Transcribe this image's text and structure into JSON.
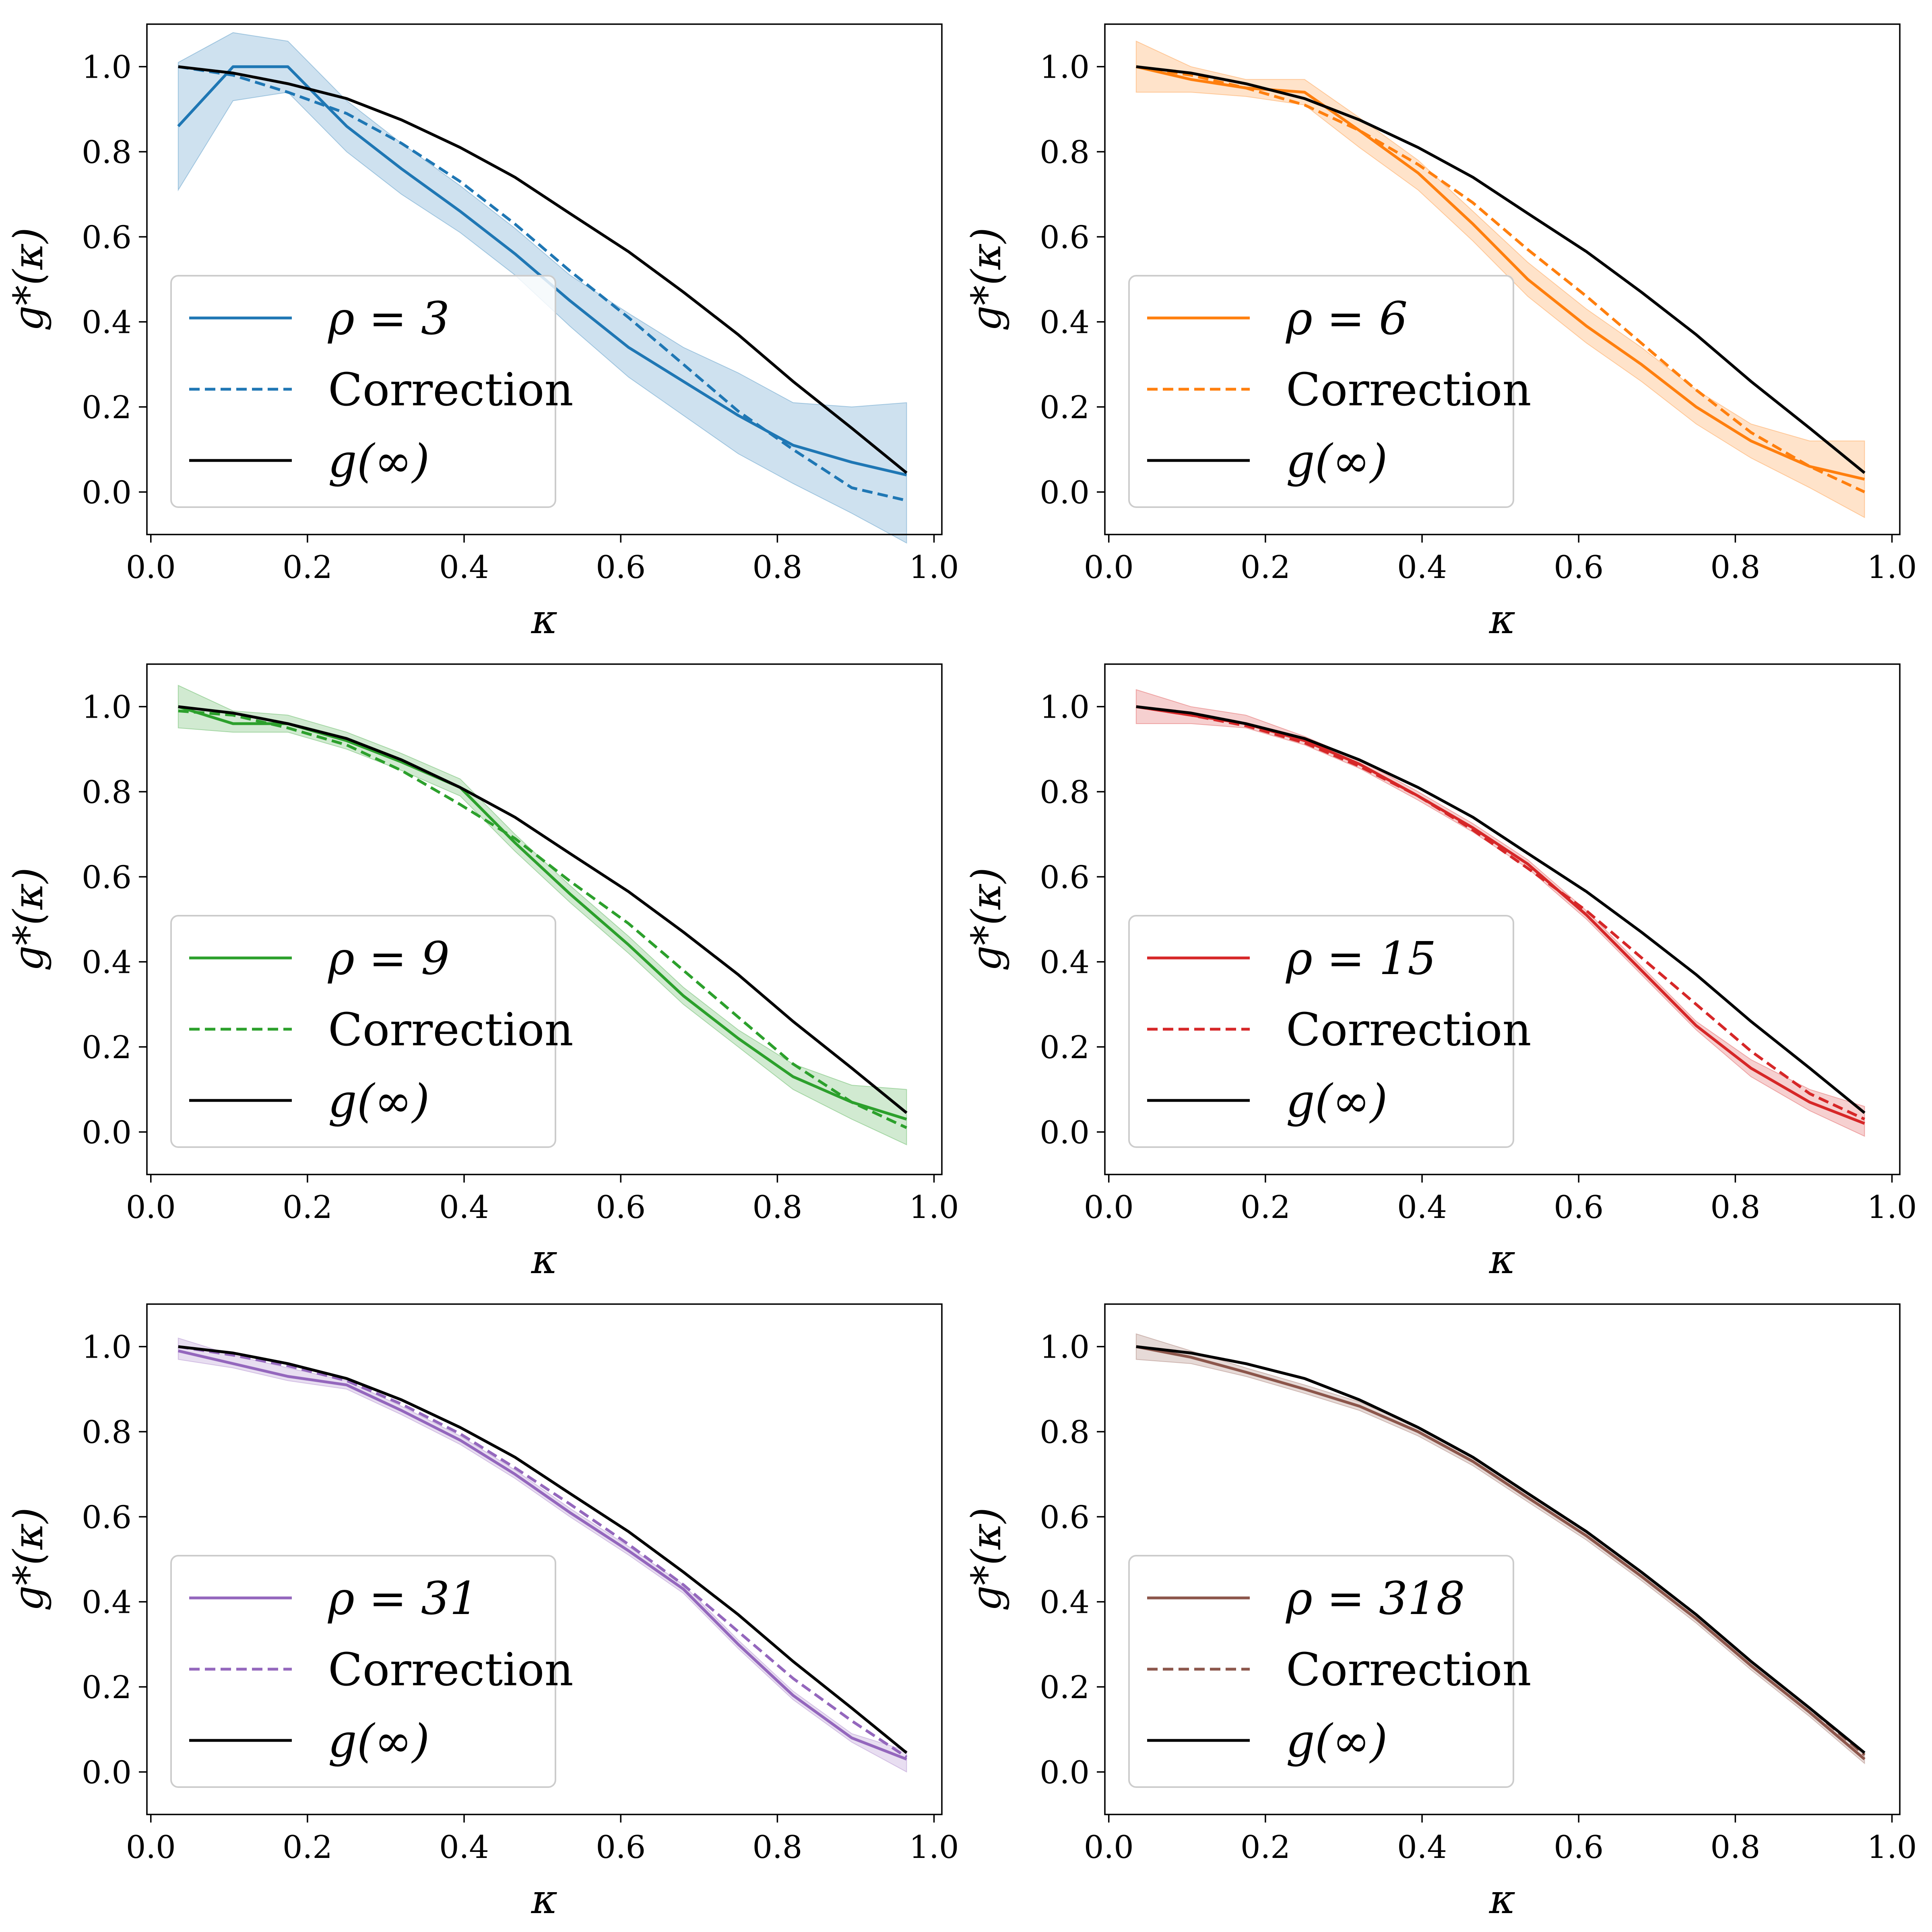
{
  "chart_data": [
    {
      "type": "line",
      "title": "",
      "xlabel": "κ",
      "ylabel": "g*(κ)",
      "xlim": [
        -0.005,
        1.01
      ],
      "ylim": [
        -0.1,
        1.1
      ],
      "xticks": [
        "0.0",
        "0.2",
        "0.4",
        "0.6",
        "0.8",
        "1.0"
      ],
      "yticks": [
        "0.0",
        "0.2",
        "0.4",
        "0.6",
        "0.8",
        "1.0"
      ],
      "legend_position": "center-left",
      "color": "#1f77b4",
      "x": [
        0.035,
        0.105,
        0.175,
        0.25,
        0.32,
        0.395,
        0.465,
        0.535,
        0.61,
        0.68,
        0.75,
        0.82,
        0.895,
        0.965
      ],
      "series": [
        {
          "name": "ρ = 3",
          "style": "solid",
          "values": [
            0.86,
            1.0,
            1.0,
            0.86,
            0.76,
            0.66,
            0.56,
            0.45,
            0.34,
            0.26,
            0.18,
            0.11,
            0.07,
            0.04
          ]
        },
        {
          "name": "Correction",
          "style": "dashed",
          "values": [
            1.0,
            0.98,
            0.94,
            0.89,
            0.82,
            0.73,
            0.63,
            0.52,
            0.41,
            0.3,
            0.19,
            0.1,
            0.01,
            -0.02
          ]
        },
        {
          "name": "g(∞)",
          "style": "solid",
          "values": [
            1.0,
            0.985,
            0.96,
            0.925,
            0.875,
            0.81,
            0.74,
            0.655,
            0.565,
            0.47,
            0.37,
            0.26,
            0.15,
            0.045
          ]
        }
      ],
      "band": {
        "lower": [
          0.71,
          0.92,
          0.94,
          0.8,
          0.7,
          0.61,
          0.51,
          0.39,
          0.27,
          0.18,
          0.09,
          0.02,
          -0.05,
          -0.12
        ],
        "upper": [
          1.01,
          1.08,
          1.06,
          0.92,
          0.82,
          0.72,
          0.62,
          0.51,
          0.42,
          0.34,
          0.28,
          0.21,
          0.2,
          0.21
        ]
      },
      "legend": [
        "ρ = 3",
        "Correction",
        "g(∞)"
      ]
    },
    {
      "type": "line",
      "title": "",
      "xlabel": "κ",
      "ylabel": "g*(κ)",
      "xlim": [
        -0.005,
        1.01
      ],
      "ylim": [
        -0.1,
        1.1
      ],
      "xticks": [
        "0.0",
        "0.2",
        "0.4",
        "0.6",
        "0.8",
        "1.0"
      ],
      "yticks": [
        "0.0",
        "0.2",
        "0.4",
        "0.6",
        "0.8",
        "1.0"
      ],
      "legend_position": "center-left",
      "color": "#ff7f0e",
      "x": [
        0.035,
        0.105,
        0.175,
        0.25,
        0.32,
        0.395,
        0.465,
        0.535,
        0.61,
        0.68,
        0.75,
        0.82,
        0.895,
        0.965
      ],
      "series": [
        {
          "name": "ρ = 6",
          "style": "solid",
          "values": [
            1.0,
            0.97,
            0.95,
            0.94,
            0.85,
            0.75,
            0.63,
            0.5,
            0.39,
            0.3,
            0.2,
            0.12,
            0.06,
            0.03
          ]
        },
        {
          "name": "Correction",
          "style": "dashed",
          "values": [
            1.0,
            0.98,
            0.95,
            0.91,
            0.85,
            0.77,
            0.68,
            0.57,
            0.46,
            0.35,
            0.24,
            0.14,
            0.06,
            0.0
          ]
        },
        {
          "name": "g(∞)",
          "style": "solid",
          "values": [
            1.0,
            0.985,
            0.96,
            0.925,
            0.875,
            0.81,
            0.74,
            0.655,
            0.565,
            0.47,
            0.37,
            0.26,
            0.15,
            0.045
          ]
        }
      ],
      "band": {
        "lower": [
          0.94,
          0.94,
          0.93,
          0.91,
          0.81,
          0.71,
          0.59,
          0.46,
          0.35,
          0.26,
          0.16,
          0.08,
          0.01,
          -0.06
        ],
        "upper": [
          1.06,
          1.0,
          0.97,
          0.97,
          0.88,
          0.78,
          0.66,
          0.54,
          0.43,
          0.34,
          0.24,
          0.16,
          0.12,
          0.12
        ]
      },
      "legend": [
        "ρ = 6",
        "Correction",
        "g(∞)"
      ]
    },
    {
      "type": "line",
      "title": "",
      "xlabel": "κ",
      "ylabel": "g*(κ)",
      "xlim": [
        -0.005,
        1.01
      ],
      "ylim": [
        -0.1,
        1.1
      ],
      "xticks": [
        "0.0",
        "0.2",
        "0.4",
        "0.6",
        "0.8",
        "1.0"
      ],
      "yticks": [
        "0.0",
        "0.2",
        "0.4",
        "0.6",
        "0.8",
        "1.0"
      ],
      "legend_position": "center-left",
      "color": "#2ca02c",
      "x": [
        0.035,
        0.105,
        0.175,
        0.25,
        0.32,
        0.395,
        0.465,
        0.535,
        0.61,
        0.68,
        0.75,
        0.82,
        0.895,
        0.965
      ],
      "series": [
        {
          "name": "ρ = 9",
          "style": "solid",
          "values": [
            1.0,
            0.96,
            0.96,
            0.92,
            0.87,
            0.81,
            0.68,
            0.56,
            0.44,
            0.32,
            0.22,
            0.13,
            0.07,
            0.03
          ]
        },
        {
          "name": "Correction",
          "style": "dashed",
          "values": [
            0.99,
            0.98,
            0.95,
            0.91,
            0.85,
            0.77,
            0.69,
            0.59,
            0.49,
            0.38,
            0.27,
            0.16,
            0.07,
            0.01
          ]
        },
        {
          "name": "g(∞)",
          "style": "solid",
          "values": [
            1.0,
            0.985,
            0.96,
            0.925,
            0.875,
            0.81,
            0.74,
            0.655,
            0.565,
            0.47,
            0.37,
            0.26,
            0.15,
            0.045
          ]
        }
      ],
      "band": {
        "lower": [
          0.95,
          0.94,
          0.94,
          0.9,
          0.85,
          0.79,
          0.66,
          0.54,
          0.42,
          0.3,
          0.2,
          0.1,
          0.03,
          -0.03
        ],
        "upper": [
          1.05,
          0.99,
          0.98,
          0.94,
          0.89,
          0.83,
          0.7,
          0.58,
          0.46,
          0.34,
          0.24,
          0.16,
          0.11,
          0.1
        ]
      },
      "legend": [
        "ρ = 9",
        "Correction",
        "g(∞)"
      ]
    },
    {
      "type": "line",
      "title": "",
      "xlabel": "κ",
      "ylabel": "g*(κ)",
      "xlim": [
        -0.005,
        1.01
      ],
      "ylim": [
        -0.1,
        1.1
      ],
      "xticks": [
        "0.0",
        "0.2",
        "0.4",
        "0.6",
        "0.8",
        "1.0"
      ],
      "yticks": [
        "0.0",
        "0.2",
        "0.4",
        "0.6",
        "0.8",
        "1.0"
      ],
      "legend_position": "center-left",
      "color": "#d62728",
      "x": [
        0.035,
        0.105,
        0.175,
        0.25,
        0.32,
        0.395,
        0.465,
        0.535,
        0.61,
        0.68,
        0.75,
        0.82,
        0.895,
        0.965
      ],
      "series": [
        {
          "name": "ρ = 15",
          "style": "solid",
          "values": [
            1.0,
            0.98,
            0.96,
            0.92,
            0.865,
            0.79,
            0.715,
            0.63,
            0.51,
            0.38,
            0.25,
            0.15,
            0.07,
            0.02
          ]
        },
        {
          "name": "Correction",
          "style": "dashed",
          "values": [
            1.0,
            0.98,
            0.955,
            0.915,
            0.86,
            0.79,
            0.71,
            0.62,
            0.52,
            0.41,
            0.3,
            0.19,
            0.09,
            0.03
          ]
        },
        {
          "name": "g(∞)",
          "style": "solid",
          "values": [
            1.0,
            0.985,
            0.96,
            0.925,
            0.875,
            0.81,
            0.74,
            0.655,
            0.565,
            0.47,
            0.37,
            0.26,
            0.15,
            0.045
          ]
        }
      ],
      "band": {
        "lower": [
          0.96,
          0.96,
          0.95,
          0.91,
          0.855,
          0.78,
          0.705,
          0.62,
          0.5,
          0.37,
          0.24,
          0.13,
          0.05,
          -0.01
        ],
        "upper": [
          1.04,
          1.0,
          0.98,
          0.93,
          0.875,
          0.8,
          0.725,
          0.64,
          0.52,
          0.39,
          0.26,
          0.17,
          0.1,
          0.06
        ]
      },
      "legend": [
        "ρ = 15",
        "Correction",
        "g(∞)"
      ]
    },
    {
      "type": "line",
      "title": "",
      "xlabel": "κ",
      "ylabel": "g*(κ)",
      "xlim": [
        -0.005,
        1.01
      ],
      "ylim": [
        -0.1,
        1.1
      ],
      "xticks": [
        "0.0",
        "0.2",
        "0.4",
        "0.6",
        "0.8",
        "1.0"
      ],
      "yticks": [
        "0.0",
        "0.2",
        "0.4",
        "0.6",
        "0.8",
        "1.0"
      ],
      "legend_position": "center-left",
      "color": "#9467bd",
      "x": [
        0.035,
        0.105,
        0.175,
        0.25,
        0.32,
        0.395,
        0.465,
        0.535,
        0.61,
        0.68,
        0.75,
        0.82,
        0.895,
        0.965
      ],
      "series": [
        {
          "name": "ρ = 31",
          "style": "solid",
          "values": [
            0.99,
            0.96,
            0.93,
            0.91,
            0.85,
            0.78,
            0.7,
            0.61,
            0.52,
            0.43,
            0.3,
            0.18,
            0.08,
            0.03
          ]
        },
        {
          "name": "Correction",
          "style": "dashed",
          "values": [
            1.0,
            0.98,
            0.955,
            0.92,
            0.865,
            0.795,
            0.715,
            0.63,
            0.535,
            0.44,
            0.33,
            0.22,
            0.12,
            0.035
          ]
        },
        {
          "name": "g(∞)",
          "style": "solid",
          "values": [
            1.0,
            0.985,
            0.96,
            0.925,
            0.875,
            0.81,
            0.74,
            0.655,
            0.565,
            0.47,
            0.37,
            0.26,
            0.15,
            0.045
          ]
        }
      ],
      "band": {
        "lower": [
          0.97,
          0.95,
          0.92,
          0.9,
          0.84,
          0.77,
          0.69,
          0.6,
          0.51,
          0.42,
          0.29,
          0.17,
          0.07,
          0.0
        ],
        "upper": [
          1.02,
          0.98,
          0.95,
          0.92,
          0.86,
          0.79,
          0.71,
          0.62,
          0.53,
          0.44,
          0.31,
          0.19,
          0.09,
          0.05
        ]
      },
      "legend": [
        "ρ = 31",
        "Correction",
        "g(∞)"
      ]
    },
    {
      "type": "line",
      "title": "",
      "xlabel": "κ",
      "ylabel": "g*(κ)",
      "xlim": [
        -0.005,
        1.01
      ],
      "ylim": [
        -0.1,
        1.1
      ],
      "xticks": [
        "0.0",
        "0.2",
        "0.4",
        "0.6",
        "0.8",
        "1.0"
      ],
      "yticks": [
        "0.0",
        "0.2",
        "0.4",
        "0.6",
        "0.8",
        "1.0"
      ],
      "legend_position": "center-left",
      "color": "#8c564b",
      "x": [
        0.035,
        0.105,
        0.175,
        0.25,
        0.32,
        0.395,
        0.465,
        0.535,
        0.61,
        0.68,
        0.75,
        0.82,
        0.895,
        0.965
      ],
      "series": [
        {
          "name": "ρ = 318",
          "style": "solid",
          "values": [
            1.0,
            0.975,
            0.94,
            0.9,
            0.86,
            0.8,
            0.73,
            0.645,
            0.555,
            0.46,
            0.36,
            0.25,
            0.14,
            0.03
          ]
        },
        {
          "name": "Correction",
          "style": "dashed",
          "values": [
            1.0,
            0.985,
            0.96,
            0.925,
            0.875,
            0.81,
            0.74,
            0.655,
            0.565,
            0.47,
            0.37,
            0.26,
            0.15,
            0.04
          ]
        },
        {
          "name": "g(∞)",
          "style": "solid",
          "values": [
            1.0,
            0.985,
            0.96,
            0.925,
            0.875,
            0.81,
            0.74,
            0.655,
            0.565,
            0.47,
            0.37,
            0.26,
            0.15,
            0.045
          ]
        }
      ],
      "band": {
        "lower": [
          0.97,
          0.96,
          0.93,
          0.89,
          0.85,
          0.79,
          0.72,
          0.635,
          0.545,
          0.45,
          0.35,
          0.24,
          0.13,
          0.02
        ],
        "upper": [
          1.03,
          0.99,
          0.95,
          0.91,
          0.87,
          0.81,
          0.74,
          0.655,
          0.565,
          0.47,
          0.37,
          0.26,
          0.15,
          0.04
        ]
      },
      "legend": [
        "ρ = 318",
        "Correction",
        "g(∞)"
      ]
    }
  ]
}
